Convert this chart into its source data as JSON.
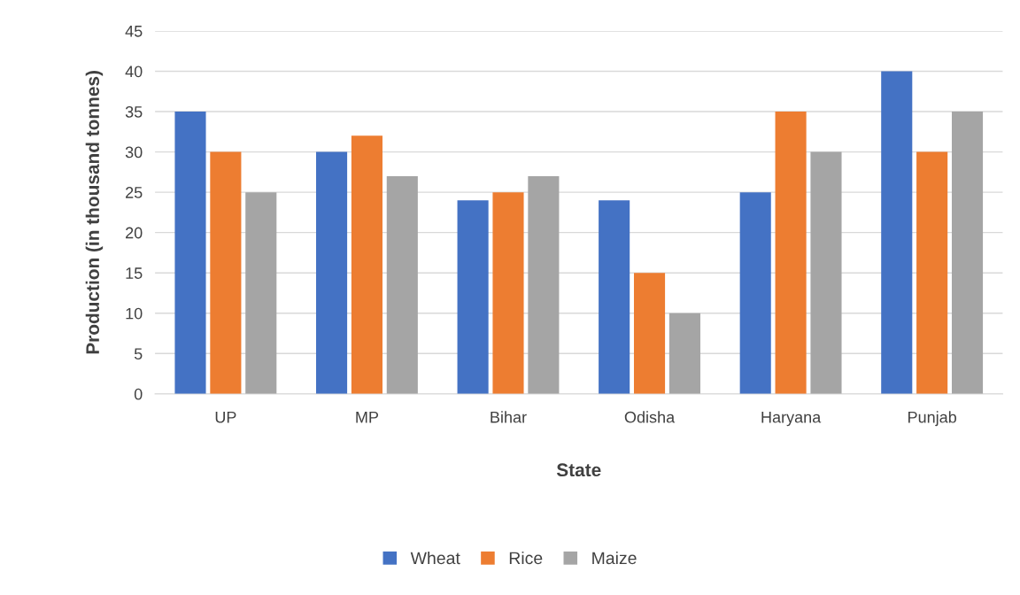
{
  "chart_data": {
    "type": "bar",
    "xlabel": "State",
    "ylabel": "Production (in thousand tonnes)",
    "categories": [
      "UP",
      "MP",
      "Bihar",
      "Odisha",
      "Haryana",
      "Punjab"
    ],
    "series": [
      {
        "name": "Wheat",
        "color": "#4472c4",
        "values": [
          35,
          30,
          24,
          24,
          25,
          40
        ]
      },
      {
        "name": "Rice",
        "color": "#ed7d31",
        "values": [
          30,
          32,
          25,
          15,
          35,
          30
        ]
      },
      {
        "name": "Maize",
        "color": "#a5a5a5",
        "values": [
          25,
          27,
          27,
          10,
          30,
          35
        ]
      }
    ],
    "ylim": [
      0,
      45
    ],
    "yticks": [
      0,
      5,
      10,
      15,
      20,
      25,
      30,
      35,
      40,
      45
    ],
    "grid": "y",
    "legend": "bottom"
  }
}
